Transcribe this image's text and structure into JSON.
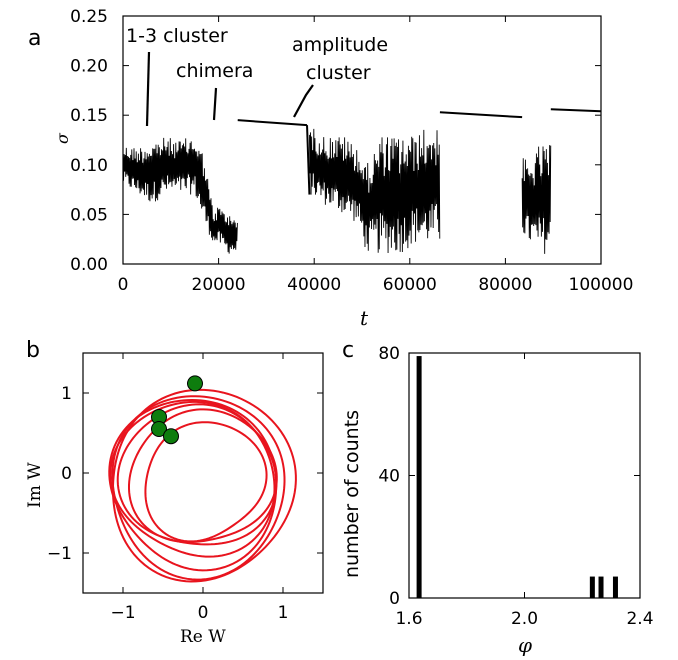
{
  "chart_data": [
    {
      "panel_label": "a",
      "type": "line",
      "xlabel": "t",
      "ylabel": "σ",
      "xlim": [
        0,
        100000
      ],
      "ylim": [
        0,
        0.25
      ],
      "xticks": [
        "0",
        "20000",
        "40000",
        "60000",
        "80000",
        "100000"
      ],
      "yticks": [
        "0.00",
        "0.05",
        "0.10",
        "0.15",
        "0.20",
        "0.25"
      ],
      "annotations": [
        {
          "text": "1-3 cluster",
          "x": 5000,
          "y": 0.14
        },
        {
          "text": "chimera",
          "x": 19500,
          "y": 0.12
        },
        {
          "text": "amplitude",
          "x": 35500,
          "y": 0.15
        },
        {
          "text": "cluster",
          "x": 35500,
          "y": 0.15
        }
      ],
      "series": [
        {
          "style": "noisy-band",
          "segments": [
            {
              "x": [
                0,
                3000,
                6000,
                9000,
                12000,
                15000,
                17000,
                19000,
                20000,
                22000,
                24000
              ],
              "hi": [
                0.12,
                0.118,
                0.125,
                0.128,
                0.125,
                0.13,
                0.11,
                0.05,
                0.06,
                0.05,
                0.05
              ],
              "lo": [
                0.08,
                0.07,
                0.06,
                0.07,
                0.07,
                0.07,
                0.04,
                0.02,
                0.02,
                0.01,
                0.01
              ]
            },
            {
              "x": [
                24000,
                38500
              ],
              "y": [
                0.145,
                0.14
              ]
            },
            {
              "x": [
                38500,
                39000
              ],
              "y": [
                0.14,
                0.07
              ]
            },
            {
              "x": [
                39000,
                42000,
                46000,
                49000,
                51000,
                54000,
                58000,
                61000,
                64000,
                66300
              ],
              "hi": [
                0.14,
                0.13,
                0.13,
                0.12,
                0.1,
                0.13,
                0.13,
                0.13,
                0.14,
                0.14
              ],
              "lo": [
                0.07,
                0.06,
                0.05,
                0.04,
                0.01,
                0.01,
                0.01,
                0.02,
                0.02,
                0.02
              ]
            },
            {
              "x": [
                66300,
                83500
              ],
              "y": [
                0.153,
                0.148
              ]
            },
            {
              "x": [
                83500,
                85000,
                87000,
                89500
              ],
              "hi": [
                0.11,
                0.1,
                0.12,
                0.12
              ],
              "lo": [
                0.03,
                0.02,
                0.01,
                0.01
              ]
            },
            {
              "x": [
                89500,
                100000
              ],
              "y": [
                0.156,
                0.154
              ]
            }
          ]
        }
      ]
    },
    {
      "panel_label": "b",
      "type": "line",
      "xlabel": "Re W",
      "ylabel": "Im W",
      "xlim": [
        -1.5,
        1.5
      ],
      "ylim": [
        -1.5,
        1.5
      ],
      "xticks": [
        "−1",
        "0",
        "1"
      ],
      "yticks": [
        "−1",
        "0",
        "1"
      ],
      "series": [
        {
          "name": "",
          "style": "spiral-orbits",
          "color": "#e8141e",
          "center": [
            -0.05,
            -0.1
          ],
          "radii": [
            0.75,
            0.88,
            0.94,
            1.0,
            1.06,
            1.12,
            1.18
          ]
        }
      ],
      "points": {
        "color": "#0e7d0e",
        "x": [
          -0.1,
          -0.55,
          -0.55,
          -0.4
        ],
        "y": [
          1.12,
          0.7,
          0.55,
          0.46
        ]
      }
    },
    {
      "panel_label": "c",
      "type": "bar",
      "xlabel": "φ",
      "ylabel": "number of counts",
      "xlim": [
        1.6,
        2.4
      ],
      "ylim": [
        0,
        80
      ],
      "xticks": [
        "1.6",
        "2.0",
        "2.4"
      ],
      "yticks": [
        "0",
        "40",
        "80"
      ],
      "x": [
        1.635,
        2.235,
        2.265,
        2.315
      ],
      "values": [
        79,
        7,
        7,
        7
      ]
    }
  ]
}
